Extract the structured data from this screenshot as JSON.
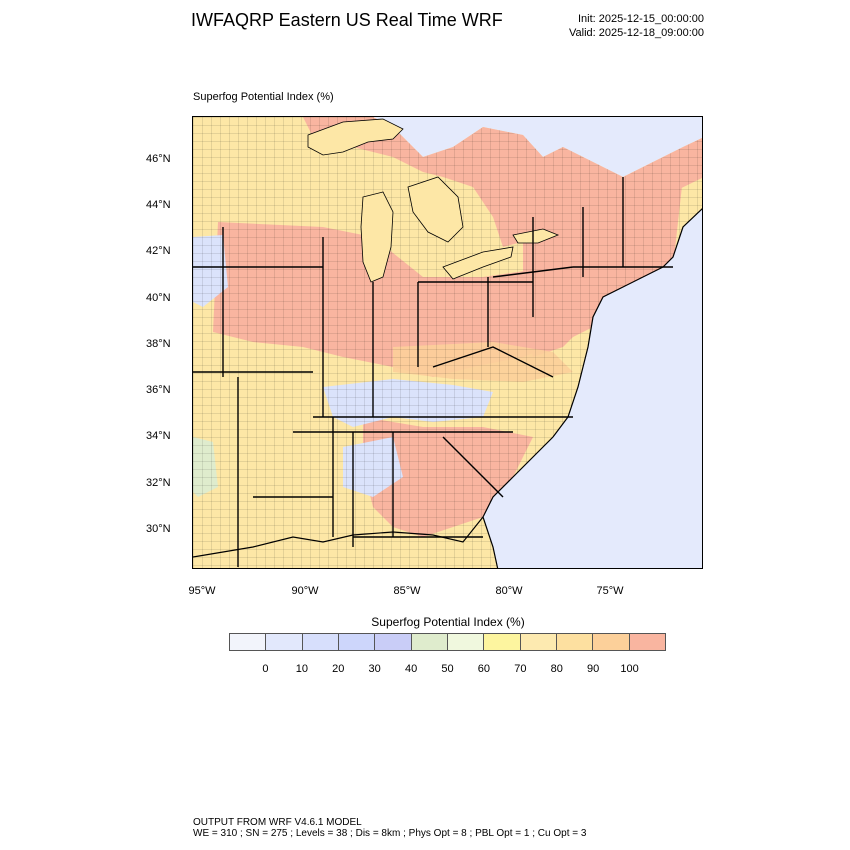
{
  "header": {
    "title": "IWFAQRP Eastern US Real Time WRF",
    "init": "Init: 2025-12-15_00:00:00",
    "valid": "Valid: 2025-12-18_09:00:00"
  },
  "panel": {
    "title": "Superfog Potential Index   (%)"
  },
  "map": {
    "lat_labels": [
      "46°N",
      "44°N",
      "42°N",
      "40°N",
      "38°N",
      "36°N",
      "34°N",
      "32°N",
      "30°N"
    ],
    "lon_labels": [
      "95°W",
      "90°W",
      "85°W",
      "80°W",
      "75°W"
    ],
    "colors": {
      "ocean": "#e4eafc",
      "low": "#dbe3fb",
      "mid_green": "#dfeccd",
      "yellow": "#fde7a6",
      "orange": "#fccf9a",
      "high": "#f9b5a0",
      "boundary": "#000000"
    }
  },
  "colorbar": {
    "title": "Superfog Potential Index  (%)",
    "ticks": [
      "0",
      "10",
      "20",
      "30",
      "40",
      "50",
      "60",
      "70",
      "80",
      "90",
      "100"
    ],
    "colors": [
      "#f2f4fb",
      "#e2e8fc",
      "#d7dffc",
      "#cdd6fb",
      "#c9cdf7",
      "#dfeccd",
      "#f0f8de",
      "#fdf59f",
      "#fdeab0",
      "#fde0a0",
      "#fcd09a",
      "#f9b5a0"
    ]
  },
  "footer": {
    "line1": "OUTPUT FROM WRF V4.6.1 MODEL",
    "line2": "WE = 310 ; SN = 275 ; Levels = 38 ; Dis = 8km ; Phys Opt = 8 ; PBL Opt = 1 ; Cu Opt = 3"
  }
}
